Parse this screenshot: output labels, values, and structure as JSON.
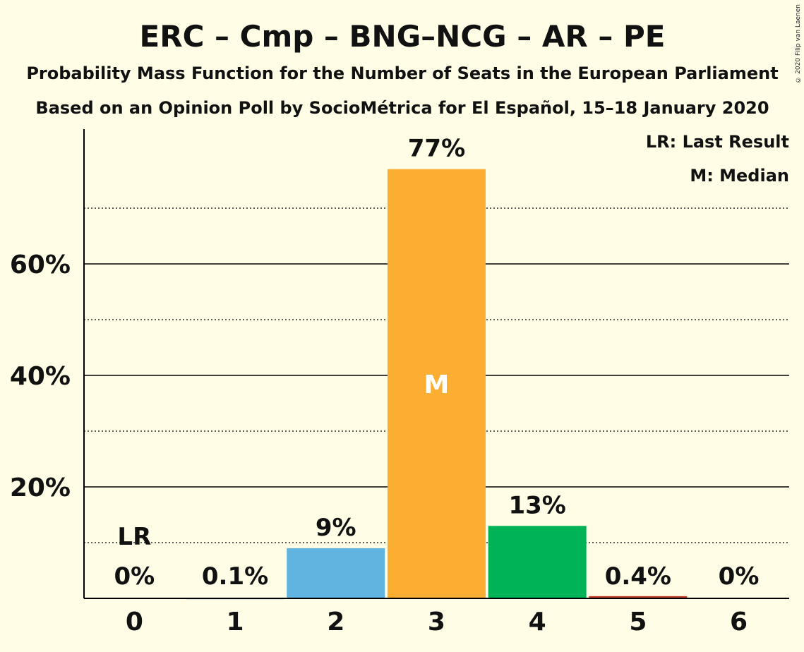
{
  "copyright": "© 2020 Filip van Laenen",
  "chart_data": {
    "type": "bar",
    "title": "ERC – Cmp – BNG–NCG – AR – PE",
    "subtitle1": "Probability Mass Function for the Number of Seats in the European Parliament",
    "subtitle2": "Based on an Opinion Poll by SocioMétrica for El Español, 15–18 January 2020",
    "categories": [
      "0",
      "1",
      "2",
      "3",
      "4",
      "5",
      "6"
    ],
    "values": [
      0,
      0.1,
      9,
      77,
      13,
      0.4,
      0
    ],
    "value_labels": [
      "0%",
      "0.1%",
      "9%",
      "77%",
      "13%",
      "0.4%",
      "0%"
    ],
    "bar_colors": [
      "#62B4E0",
      "#62B4E0",
      "#62B4E0",
      "#FBAE32",
      "#00B356",
      "#C0392B",
      "#62B4E0"
    ],
    "ylim": [
      0,
      84
    ],
    "yticks": [
      20,
      40,
      60
    ],
    "ytick_labels": [
      "20%",
      "40%",
      "60%"
    ],
    "minor_gridlines": [
      10,
      30,
      50,
      70
    ],
    "last_result_index": 0,
    "last_result_label": "LR",
    "median_index": 3,
    "median_label": "M",
    "legend": [
      "LR: Last Result",
      "M: Median"
    ],
    "legend_position": "top-right",
    "grid": true
  }
}
